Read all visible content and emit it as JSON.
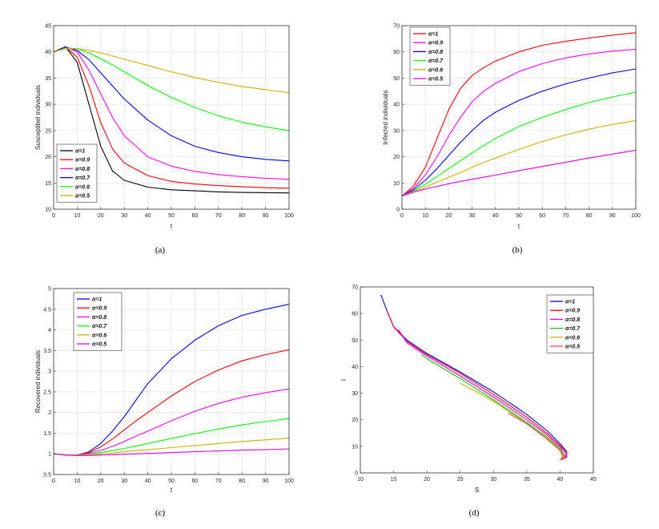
{
  "chart_data": [
    {
      "id": "a",
      "type": "line",
      "caption": "(a)",
      "xlabel": "t",
      "ylabel": "Susceptibel individuals",
      "xlim": [
        0,
        100
      ],
      "ylim": [
        10,
        45
      ],
      "xticks": [
        0,
        10,
        20,
        30,
        40,
        50,
        60,
        70,
        80,
        90,
        100
      ],
      "yticks": [
        10,
        15,
        20,
        25,
        30,
        35,
        40,
        45
      ],
      "grid": true,
      "legend_position": "bottom-left",
      "series": [
        {
          "name": "α=1",
          "color": "#000000",
          "x": [
            0,
            5,
            10,
            15,
            20,
            25,
            30,
            40,
            50,
            60,
            70,
            80,
            90,
            100
          ],
          "y": [
            40,
            41,
            38,
            30,
            22,
            17.3,
            15.5,
            14.2,
            13.7,
            13.5,
            13.3,
            13.2,
            13.15,
            13.1
          ]
        },
        {
          "name": "α=0.9",
          "color": "#ff0000",
          "x": [
            0,
            5,
            10,
            15,
            20,
            25,
            30,
            40,
            50,
            60,
            70,
            80,
            90,
            100
          ],
          "y": [
            40,
            41,
            39,
            33.5,
            26.5,
            21.5,
            18.8,
            16.4,
            15.3,
            14.8,
            14.5,
            14.3,
            14.1,
            14
          ]
        },
        {
          "name": "α=0.8",
          "color": "#ff00ff",
          "x": [
            0,
            5,
            10,
            15,
            20,
            25,
            30,
            40,
            50,
            60,
            70,
            80,
            90,
            100
          ],
          "y": [
            40,
            41,
            40,
            36.5,
            32,
            27.5,
            24,
            20,
            18.2,
            17.2,
            16.6,
            16.2,
            15.9,
            15.7
          ]
        },
        {
          "name": "α=0.7",
          "color": "#0000ff",
          "x": [
            0,
            5,
            10,
            15,
            20,
            25,
            30,
            40,
            50,
            60,
            70,
            80,
            90,
            100
          ],
          "y": [
            40,
            40.9,
            40.3,
            38.5,
            36,
            33.5,
            31,
            27,
            24,
            22,
            20.8,
            20,
            19.5,
            19.2
          ]
        },
        {
          "name": "α=0.6",
          "color": "#00ff00",
          "x": [
            0,
            5,
            10,
            15,
            20,
            25,
            30,
            40,
            50,
            60,
            70,
            80,
            90,
            100
          ],
          "y": [
            40,
            40.7,
            40.6,
            39.8,
            38.7,
            37.5,
            36.2,
            33.6,
            31.3,
            29.4,
            27.8,
            26.6,
            25.7,
            25
          ]
        },
        {
          "name": "α=0.5",
          "color": "#c8b400",
          "x": [
            0,
            5,
            10,
            15,
            20,
            25,
            30,
            40,
            50,
            60,
            70,
            80,
            90,
            100
          ],
          "y": [
            40,
            40.6,
            40.6,
            40.3,
            39.8,
            39.2,
            38.6,
            37.4,
            36.2,
            35.1,
            34.2,
            33.4,
            32.8,
            32.2
          ]
        }
      ]
    },
    {
      "id": "b",
      "type": "line",
      "caption": "(b)",
      "xlabel": "t",
      "ylabel": "Infected individuals",
      "xlim": [
        0,
        100
      ],
      "ylim": [
        0,
        70
      ],
      "xticks": [
        0,
        10,
        20,
        30,
        40,
        50,
        60,
        70,
        80,
        90,
        100
      ],
      "yticks": [
        0,
        10,
        20,
        30,
        40,
        50,
        60,
        70
      ],
      "grid": true,
      "legend_position": "top-left",
      "series": [
        {
          "name": "α=1",
          "color": "#ff0000",
          "x": [
            0,
            5,
            10,
            15,
            20,
            25,
            30,
            35,
            40,
            50,
            60,
            70,
            80,
            90,
            100
          ],
          "y": [
            5,
            9,
            16,
            27,
            38,
            46,
            51,
            54,
            56.5,
            60,
            62.5,
            64,
            65.3,
            66.4,
            67.3
          ]
        },
        {
          "name": "α=0.9",
          "color": "#ff00ff",
          "x": [
            0,
            5,
            10,
            15,
            20,
            25,
            30,
            35,
            40,
            50,
            60,
            70,
            80,
            90,
            100
          ],
          "y": [
            5,
            8,
            13,
            20,
            28,
            35,
            41,
            45,
            48,
            52.5,
            55.5,
            57.7,
            59.2,
            60.3,
            61
          ]
        },
        {
          "name": "α=0.8",
          "color": "#0000ff",
          "x": [
            0,
            5,
            10,
            15,
            20,
            25,
            30,
            35,
            40,
            50,
            60,
            70,
            80,
            90,
            100
          ],
          "y": [
            5,
            7.5,
            11,
            15.5,
            20.5,
            25.5,
            30,
            34,
            37,
            41.5,
            45,
            47.8,
            50,
            52,
            53.5
          ]
        },
        {
          "name": "α=0.7",
          "color": "#00ff00",
          "x": [
            0,
            5,
            10,
            15,
            20,
            25,
            30,
            35,
            40,
            50,
            60,
            70,
            80,
            90,
            100
          ],
          "y": [
            5,
            7,
            9.5,
            12.5,
            15.5,
            18.5,
            21.5,
            24.2,
            27,
            31.5,
            35,
            38,
            40.7,
            42.8,
            44.6
          ]
        },
        {
          "name": "α=0.6",
          "color": "#c8b400",
          "x": [
            0,
            5,
            10,
            15,
            20,
            25,
            30,
            35,
            40,
            50,
            60,
            70,
            80,
            90,
            100
          ],
          "y": [
            5,
            6.8,
            8.5,
            10.3,
            12.2,
            14,
            16,
            17.8,
            19.5,
            22.8,
            25.8,
            28.3,
            30.5,
            32.3,
            33.8
          ]
        },
        {
          "name": "α=0.5",
          "color": "#e600e6",
          "x": [
            0,
            5,
            10,
            15,
            20,
            25,
            30,
            35,
            40,
            50,
            60,
            70,
            80,
            90,
            100
          ],
          "y": [
            5,
            6.5,
            7.7,
            8.7,
            9.7,
            10.6,
            11.4,
            12.2,
            13,
            14.7,
            16.3,
            17.9,
            19.5,
            21,
            22.5
          ]
        }
      ]
    },
    {
      "id": "c",
      "type": "line",
      "caption": "(c)",
      "xlabel": "t",
      "ylabel": "Recovered individuals",
      "xlim": [
        0,
        100
      ],
      "ylim": [
        0.5,
        5
      ],
      "xticks": [
        0,
        10,
        20,
        30,
        40,
        50,
        60,
        70,
        80,
        90,
        100
      ],
      "yticks": [
        0.5,
        1,
        1.5,
        2,
        2.5,
        3,
        3.5,
        4,
        4.5,
        5
      ],
      "grid": true,
      "legend_position": "top-left",
      "series": [
        {
          "name": "α=1",
          "color": "#0000ff",
          "x": [
            0,
            5,
            10,
            15,
            20,
            25,
            30,
            35,
            40,
            50,
            60,
            70,
            80,
            90,
            100
          ],
          "y": [
            1,
            0.97,
            0.97,
            1.05,
            1.25,
            1.55,
            1.9,
            2.3,
            2.7,
            3.3,
            3.75,
            4.1,
            4.35,
            4.5,
            4.62
          ]
        },
        {
          "name": "α=0.9",
          "color": "#ff0000",
          "x": [
            0,
            5,
            10,
            15,
            20,
            25,
            30,
            35,
            40,
            50,
            60,
            70,
            80,
            90,
            100
          ],
          "y": [
            1,
            0.97,
            0.97,
            1.03,
            1.17,
            1.36,
            1.58,
            1.8,
            2,
            2.4,
            2.75,
            3.03,
            3.25,
            3.4,
            3.52
          ]
        },
        {
          "name": "α=0.8",
          "color": "#ff00ff",
          "x": [
            0,
            5,
            10,
            15,
            20,
            25,
            30,
            35,
            40,
            50,
            60,
            70,
            80,
            90,
            100
          ],
          "y": [
            1,
            0.97,
            0.97,
            1.01,
            1.08,
            1.18,
            1.3,
            1.43,
            1.55,
            1.8,
            2.03,
            2.22,
            2.37,
            2.48,
            2.57
          ]
        },
        {
          "name": "α=0.7",
          "color": "#00ff00",
          "x": [
            0,
            5,
            10,
            15,
            20,
            25,
            30,
            35,
            40,
            50,
            60,
            70,
            80,
            90,
            100
          ],
          "y": [
            1,
            0.97,
            0.97,
            0.99,
            1.03,
            1.08,
            1.13,
            1.19,
            1.25,
            1.37,
            1.49,
            1.6,
            1.7,
            1.78,
            1.86
          ]
        },
        {
          "name": "α=0.6",
          "color": "#c8b400",
          "x": [
            0,
            5,
            10,
            15,
            20,
            25,
            30,
            35,
            40,
            50,
            60,
            70,
            80,
            90,
            100
          ],
          "y": [
            1,
            0.97,
            0.97,
            0.98,
            1,
            1.02,
            1.05,
            1.08,
            1.1,
            1.15,
            1.2,
            1.25,
            1.3,
            1.34,
            1.38
          ]
        },
        {
          "name": "α=0.5",
          "color": "#e600e6",
          "x": [
            0,
            5,
            10,
            15,
            20,
            25,
            30,
            35,
            40,
            50,
            60,
            70,
            80,
            90,
            100
          ],
          "y": [
            1,
            0.97,
            0.96,
            0.96,
            0.97,
            0.98,
            0.99,
            1,
            1.01,
            1.03,
            1.05,
            1.07,
            1.09,
            1.1,
            1.12
          ]
        }
      ]
    },
    {
      "id": "d",
      "type": "line",
      "caption": "(d)",
      "xlabel": "S",
      "ylabel": "I",
      "xlim": [
        10,
        45
      ],
      "ylim": [
        0,
        70
      ],
      "xticks": [
        10,
        15,
        20,
        25,
        30,
        35,
        40,
        45
      ],
      "yticks": [
        0,
        10,
        20,
        30,
        40,
        50,
        60,
        70
      ],
      "grid": false,
      "legend_position": "top-right",
      "series": [
        {
          "name": "α=1",
          "color": "#0000ff",
          "x": [
            13.1,
            14,
            15,
            17,
            20,
            25,
            30,
            35,
            38,
            40,
            41,
            41,
            40.2
          ],
          "y": [
            67,
            61,
            55,
            50,
            45,
            38,
            30.5,
            22,
            16,
            11,
            8,
            6,
            5
          ]
        },
        {
          "name": "α=0.9",
          "color": "#ff0000",
          "x": [
            14,
            15,
            17,
            20,
            25,
            30,
            35,
            38,
            40,
            41,
            40.9,
            40
          ],
          "y": [
            61,
            55,
            49.5,
            44.5,
            37.5,
            29.5,
            21,
            15,
            10.3,
            7.5,
            5.8,
            5
          ]
        },
        {
          "name": "α=0.8",
          "color": "#e600e6",
          "x": [
            15.7,
            17,
            20,
            25,
            30,
            35,
            38,
            40,
            40.8,
            40.6,
            40
          ],
          "y": [
            54,
            49,
            44,
            36.5,
            28.5,
            20,
            14.3,
            9.8,
            7,
            5.6,
            5
          ]
        },
        {
          "name": "α=0.7",
          "color": "#00cc00",
          "x": [
            19.2,
            20,
            25,
            30,
            35,
            38,
            40,
            40.6,
            40.3,
            40
          ],
          "y": [
            44.6,
            43,
            35.5,
            27.5,
            19,
            13.5,
            9.2,
            6.5,
            5.3,
            5
          ]
        },
        {
          "name": "α=0.6",
          "color": "#c8b400",
          "x": [
            25,
            30,
            35,
            38,
            40,
            40.5,
            40.2,
            40
          ],
          "y": [
            33.8,
            27,
            18.5,
            13,
            8.8,
            6.2,
            5.2,
            5
          ]
        },
        {
          "name": "α=0.5",
          "color": "#ff4040",
          "x": [
            32.2,
            35,
            38,
            40,
            40.4,
            40.1,
            40
          ],
          "y": [
            22.5,
            18.5,
            12.8,
            8.5,
            6,
            5.2,
            5
          ]
        }
      ]
    }
  ]
}
